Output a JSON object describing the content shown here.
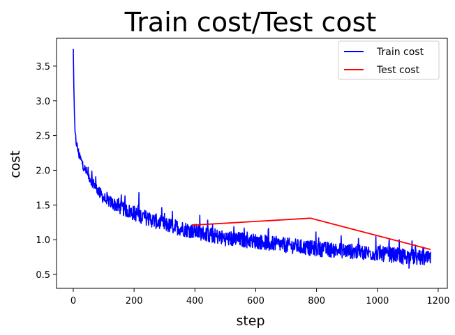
{
  "chart_data": {
    "type": "line",
    "title": "Train cost/Test cost",
    "xlabel": "step",
    "ylabel": "cost",
    "xlim": [
      -55,
      1230
    ],
    "ylim": [
      0.3,
      3.9
    ],
    "xticks": [
      0,
      200,
      400,
      600,
      800,
      1000,
      1200
    ],
    "yticks": [
      0.5,
      1.0,
      1.5,
      2.0,
      2.5,
      3.0,
      3.5
    ],
    "xtick_labels": [
      "0",
      "200",
      "400",
      "600",
      "800",
      "1000",
      "1200"
    ],
    "ytick_labels": [
      "0.5",
      "1.0",
      "1.5",
      "2.0",
      "2.5",
      "3.0",
      "3.5"
    ],
    "grid": false,
    "legend_position": "top-right",
    "series": [
      {
        "name": "Train cost",
        "color": "#0000ff",
        "noisy": true,
        "x": [
          0,
          2,
          5,
          10,
          20,
          40,
          60,
          80,
          100,
          150,
          200,
          250,
          300,
          400,
          500,
          600,
          700,
          800,
          900,
          1000,
          1100,
          1175
        ],
        "y": [
          3.75,
          3.2,
          2.55,
          2.4,
          2.2,
          2.0,
          1.85,
          1.72,
          1.6,
          1.47,
          1.38,
          1.3,
          1.22,
          1.12,
          1.02,
          0.98,
          0.92,
          0.87,
          0.84,
          0.8,
          0.76,
          0.72
        ]
      },
      {
        "name": "Test cost",
        "color": "#ff0000",
        "noisy": false,
        "x": [
          390,
          780,
          1175
        ],
        "y": [
          1.21,
          1.31,
          0.86
        ]
      }
    ]
  }
}
